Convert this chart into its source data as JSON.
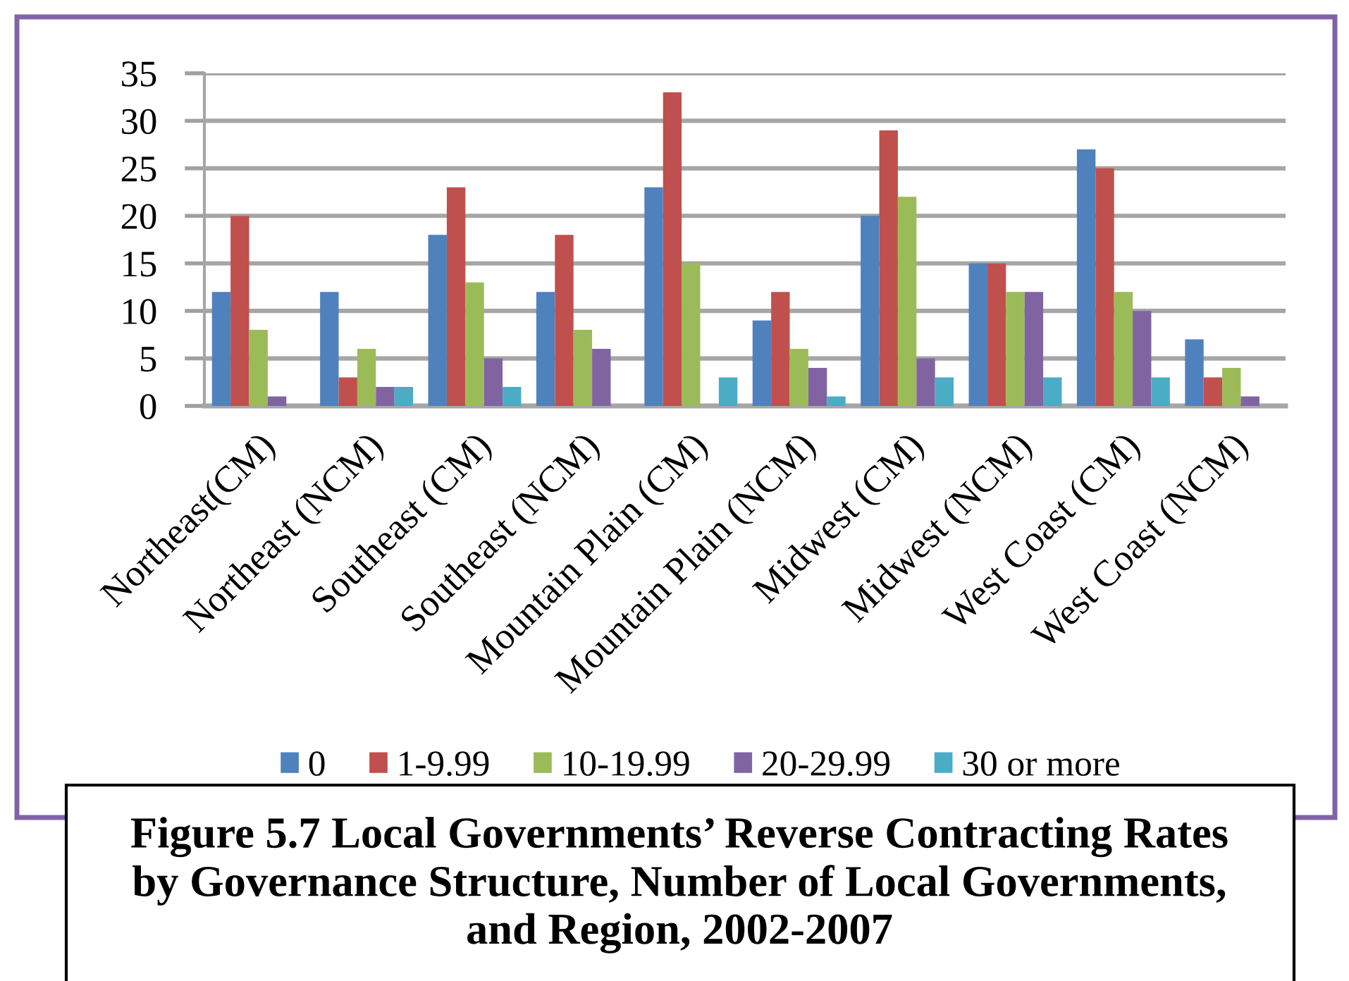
{
  "chart_data": {
    "type": "bar",
    "title": "Figure 5.7 Local Governments’ Reverse Contracting Rates\nby Governance Structure, Number of Local Governments,\nand Region, 2002-2007",
    "categories": [
      "Northeast(CM)",
      "Northeast (NCM)",
      "Southeast (CM)",
      "Southeast (NCM)",
      "Mountain Plain (CM)",
      "Mountain Plain (NCM)",
      "Midwest (CM)",
      "Midwest (NCM)",
      "West Coast (CM)",
      "West Coast (NCM)"
    ],
    "series": [
      {
        "name": "0",
        "color": "#4f81bd",
        "values": [
          12,
          12,
          18,
          12,
          23,
          9,
          20,
          15,
          27,
          7
        ]
      },
      {
        "name": "1-9.99",
        "color": "#c0504d",
        "values": [
          20,
          3,
          23,
          18,
          33,
          12,
          29,
          15,
          25,
          3
        ]
      },
      {
        "name": "10-19.99",
        "color": "#9bbb59",
        "values": [
          8,
          6,
          13,
          8,
          15,
          6,
          22,
          12,
          12,
          4
        ]
      },
      {
        "name": "20-29.99",
        "color": "#8064a2",
        "values": [
          1,
          2,
          5,
          6,
          0,
          4,
          5,
          12,
          10,
          1
        ]
      },
      {
        "name": "30 or more",
        "color": "#4bacc6",
        "values": [
          0,
          2,
          2,
          0,
          3,
          1,
          3,
          3,
          3,
          0
        ]
      }
    ],
    "ylim": [
      0,
      35
    ],
    "yticks": [
      0,
      5,
      10,
      15,
      20,
      25,
      30,
      35
    ],
    "grid": "y",
    "legend": "bottom"
  }
}
